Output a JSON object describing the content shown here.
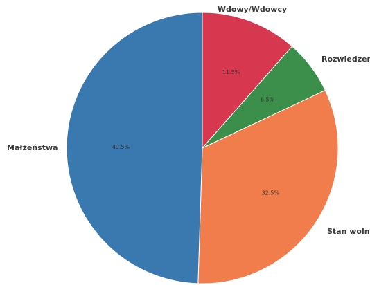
{
  "chart_data": {
    "type": "pie",
    "start_angle_deg": 90,
    "direction": "clockwise",
    "legend": "none",
    "slices": [
      {
        "label": "Wdowy/Wdowcy",
        "value": 11.5,
        "pct_label": "11.5%",
        "color": "#d8384f"
      },
      {
        "label": "Rozwiedzeni",
        "value": 6.5,
        "pct_label": "6.5%",
        "color": "#3b8f4a"
      },
      {
        "label": "Stan wolny",
        "value": 32.5,
        "pct_label": "32.5%",
        "color": "#f07d4b"
      },
      {
        "label": "Małżeństwa",
        "value": 49.5,
        "pct_label": "49.5%",
        "color": "#3a78b0"
      }
    ]
  }
}
